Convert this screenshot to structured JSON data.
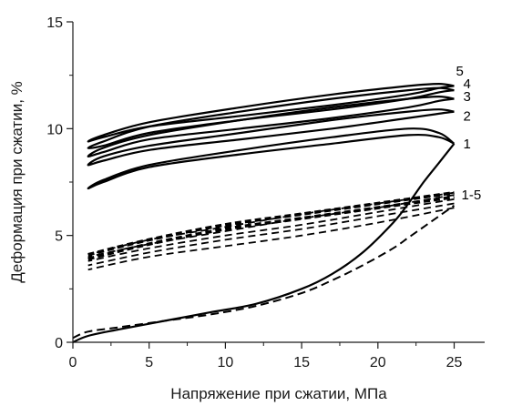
{
  "chart_data": {
    "type": "line",
    "title": "",
    "xlabel": "Напряжение при сжатии, МПа",
    "ylabel": "Деформация при сжатии, %",
    "xlim": [
      0,
      27
    ],
    "ylim": [
      0,
      15
    ],
    "xticks": [
      0,
      5,
      10,
      15,
      20,
      25
    ],
    "yticks": [
      0,
      5,
      10,
      15
    ],
    "grid": false,
    "legend": "none",
    "colors": {
      "line": "#000000"
    },
    "solid_loading_curve": {
      "x": [
        0,
        1,
        3,
        6,
        9,
        12,
        15,
        17,
        19,
        21,
        22,
        23,
        24,
        25
      ],
      "y": [
        0,
        0.3,
        0.6,
        1.0,
        1.4,
        1.8,
        2.5,
        3.2,
        4.2,
        5.6,
        6.5,
        7.5,
        8.4,
        9.3
      ]
    },
    "solid_loops": [
      {
        "label": "1",
        "x": [
          25,
          24,
          22,
          17,
          11,
          5,
          2,
          1,
          2,
          5,
          11,
          17,
          22,
          24,
          25
        ],
        "y": [
          9.3,
          9.8,
          10.0,
          9.6,
          9.0,
          8.3,
          7.6,
          7.2,
          7.5,
          8.2,
          8.8,
          9.3,
          9.7,
          9.6,
          9.3
        ]
      },
      {
        "label": "2",
        "x": [
          25,
          24,
          22,
          17,
          11,
          5,
          2,
          1,
          2,
          5,
          11,
          17,
          22,
          24,
          25
        ],
        "y": [
          10.8,
          10.9,
          10.8,
          10.4,
          9.8,
          9.2,
          8.7,
          8.3,
          8.5,
          9.0,
          9.5,
          10.0,
          10.5,
          10.7,
          10.8
        ]
      },
      {
        "label": "3",
        "x": [
          25,
          24,
          22,
          17,
          11,
          5,
          2,
          1,
          2,
          5,
          11,
          17,
          22,
          24,
          25
        ],
        "y": [
          11.4,
          11.5,
          11.4,
          11.0,
          10.4,
          9.7,
          9.1,
          8.7,
          8.9,
          9.5,
          10.0,
          10.5,
          11.0,
          11.3,
          11.4
        ]
      },
      {
        "label": "4",
        "x": [
          25,
          24,
          22,
          17,
          11,
          5,
          2,
          1,
          2,
          5,
          11,
          17,
          22,
          24,
          25
        ],
        "y": [
          11.8,
          11.9,
          11.8,
          11.4,
          10.8,
          10.1,
          9.4,
          9.1,
          9.2,
          9.8,
          10.4,
          10.9,
          11.4,
          11.7,
          11.8
        ]
      },
      {
        "label": "5",
        "x": [
          25,
          24,
          22,
          17,
          11,
          5,
          2,
          1,
          2,
          5,
          11,
          17,
          22,
          24,
          25
        ],
        "y": [
          12.0,
          12.1,
          12.0,
          11.6,
          11.0,
          10.3,
          9.7,
          9.4,
          9.6,
          10.1,
          10.6,
          11.1,
          11.6,
          11.9,
          12.0
        ]
      }
    ],
    "dashed_loading_curve": {
      "x": [
        0,
        1,
        3,
        6,
        9,
        12,
        15,
        17,
        19,
        21,
        22,
        23,
        24,
        25
      ],
      "y": [
        0.2,
        0.5,
        0.7,
        1.0,
        1.3,
        1.7,
        2.3,
        2.9,
        3.6,
        4.4,
        4.9,
        5.4,
        5.9,
        6.4
      ]
    },
    "dashed_loops": [
      {
        "x": [
          25,
          20,
          15,
          10,
          5,
          1
        ],
        "y": [
          6.3,
          5.6,
          5.0,
          4.5,
          4.0,
          3.4
        ]
      },
      {
        "x": [
          25,
          20,
          15,
          10,
          5,
          1
        ],
        "y": [
          6.5,
          5.9,
          5.3,
          4.8,
          4.2,
          3.6
        ]
      },
      {
        "x": [
          25,
          20,
          15,
          10,
          5,
          1
        ],
        "y": [
          6.7,
          6.1,
          5.5,
          5.0,
          4.4,
          3.8
        ]
      },
      {
        "x": [
          25,
          20,
          15,
          10,
          5,
          1
        ],
        "y": [
          6.9,
          6.3,
          5.8,
          5.2,
          4.6,
          4.0
        ]
      },
      {
        "x": [
          25,
          20,
          15,
          10,
          5,
          1
        ],
        "y": [
          7.0,
          6.5,
          6.0,
          5.4,
          4.8,
          4.1
        ]
      },
      {
        "x": [
          1,
          5,
          10,
          15,
          20,
          25
        ],
        "y": [
          3.9,
          4.6,
          5.3,
          5.8,
          6.3,
          6.8
        ]
      },
      {
        "x": [
          1,
          5,
          10,
          15,
          20,
          25
        ],
        "y": [
          4.1,
          4.8,
          5.5,
          6.0,
          6.5,
          7.0
        ]
      }
    ],
    "dashed_group_label": "1-5"
  }
}
